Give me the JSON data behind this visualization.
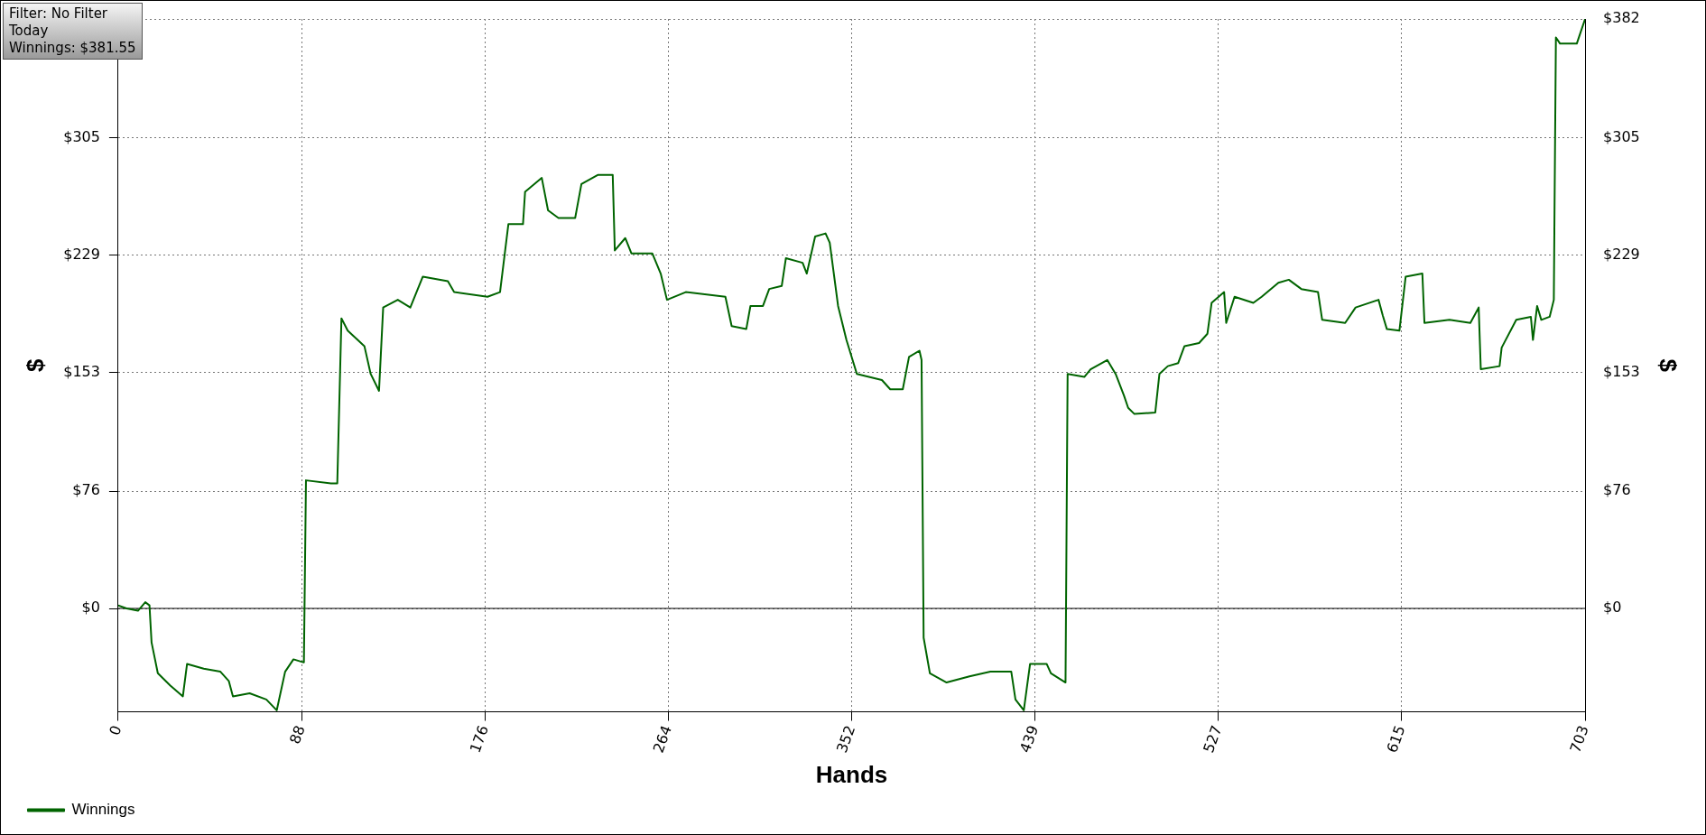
{
  "chart_data": {
    "type": "line",
    "xlabel": "Hands",
    "ylabel": "$",
    "y2label": "$",
    "annotations": [
      "Filter: No Filter",
      "Today",
      "Winnings: $381.55"
    ],
    "xlim": [
      0,
      703
    ],
    "xticks": [
      0,
      {
        "value": 87.875,
        "label": "88"
      },
      {
        "value": 175.75,
        "label": "176"
      },
      {
        "value": 263.625,
        "label": "264"
      },
      {
        "value": 351.5,
        "label": "352"
      },
      {
        "value": 439.375,
        "label": "439"
      },
      {
        "value": 527.25,
        "label": "527"
      },
      {
        "value": 615.125,
        "label": "615"
      },
      703
    ],
    "ylim": [
      -67,
      382
    ],
    "yticks": [
      {
        "value": 0,
        "label": "$0"
      },
      {
        "value": 76,
        "label": "$76"
      },
      {
        "value": 153,
        "label": "$153"
      },
      {
        "value": 229,
        "label": "$229"
      },
      {
        "value": 305,
        "label": "$305"
      },
      {
        "value": 382,
        "label": null
      }
    ],
    "y2lim": [
      -67,
      382
    ],
    "y2ticks": [
      {
        "value": 0,
        "label": "$0"
      },
      {
        "value": 76,
        "label": "$76"
      },
      {
        "value": 153,
        "label": "$153"
      },
      {
        "value": 229,
        "label": "$229"
      },
      {
        "value": 305,
        "label": "$305"
      },
      {
        "value": 382,
        "label": "$382"
      }
    ],
    "grid": true,
    "legend": "bottom left",
    "marker": "none",
    "ref_lines": [
      {
        "axis": "y",
        "value": 0,
        "color": "#000000"
      }
    ],
    "series": [
      {
        "name": "Winnings",
        "color": "#006400",
        "x": [
          0,
          4,
          9.5,
          13,
          15,
          16,
          19,
          25,
          31,
          33,
          41,
          49,
          53,
          55,
          63,
          71,
          76,
          80,
          84,
          89,
          90,
          102,
          105,
          107,
          110,
          118,
          121,
          125,
          127,
          134,
          140,
          146,
          158,
          161,
          177,
          183,
          187,
          194,
          195,
          203,
          206,
          211,
          219,
          222,
          230,
          237,
          238,
          243,
          246,
          256,
          260,
          263,
          272,
          291,
          294,
          301,
          303,
          309,
          312,
          318,
          320,
          328,
          330,
          334,
          339,
          341,
          345,
          349,
          354,
          366,
          370,
          376,
          379,
          384,
          385,
          386,
          389,
          397,
          408,
          418,
          428,
          430,
          434,
          437,
          445,
          447,
          454,
          455,
          463,
          466,
          474,
          478,
          482,
          484,
          487,
          497,
          499,
          503,
          508,
          511,
          518,
          522,
          524,
          530,
          531,
          535,
          544,
          548,
          556,
          561,
          567,
          575,
          577,
          588,
          593,
          604,
          606,
          608,
          614,
          617,
          625,
          626,
          638,
          648,
          652,
          653,
          662,
          663,
          670,
          677,
          678,
          680,
          682,
          686,
          688,
          689,
          691,
          699,
          701,
          703
        ],
        "values": [
          2,
          0,
          -1.5,
          4,
          2,
          -22,
          -42,
          -50,
          -57,
          -36,
          -39,
          -41,
          -47,
          -57,
          -55,
          -59,
          -66,
          -41,
          -33,
          -35,
          83,
          81,
          81,
          188,
          180,
          170,
          152,
          141,
          195,
          200,
          195,
          215,
          212,
          205,
          202,
          205,
          249,
          249,
          270,
          279,
          258,
          253,
          253,
          275,
          281,
          281,
          232,
          240,
          230,
          230,
          217,
          200,
          205,
          202,
          183,
          181,
          196,
          196,
          207,
          209,
          227,
          224,
          217,
          241,
          243,
          237,
          196,
          174,
          152,
          148,
          142,
          142,
          163,
          167,
          161,
          -19,
          -42,
          -48,
          -44,
          -41,
          -41,
          -59,
          -66,
          -36,
          -36,
          -42,
          -48,
          152,
          150,
          155,
          161,
          152,
          138,
          130,
          126,
          127,
          152,
          157,
          159,
          170,
          172,
          178,
          198,
          205,
          185,
          202,
          198,
          202,
          211,
          213,
          207,
          205,
          187,
          185,
          195,
          200,
          190,
          181,
          180,
          215,
          217,
          185,
          187,
          185,
          195,
          155,
          157,
          169,
          187,
          189,
          174,
          196,
          187,
          189,
          200,
          370,
          366,
          366,
          374,
          382
        ]
      }
    ]
  }
}
